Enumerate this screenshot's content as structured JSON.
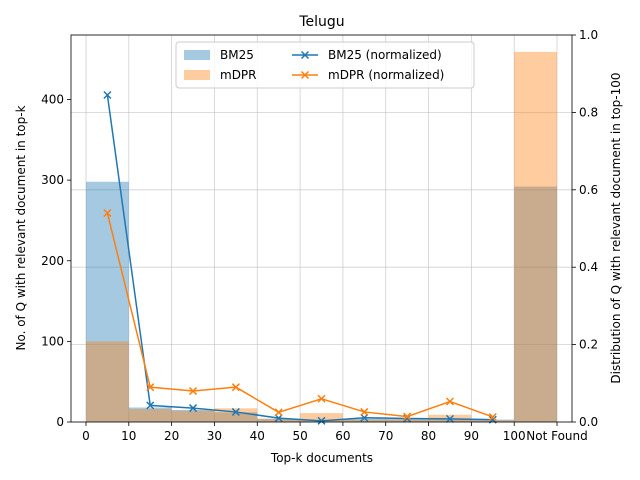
{
  "chart_data": {
    "type": "bar",
    "title": "Telugu",
    "xlabel": "Top-k documents",
    "ylabel": "No. of Q with relevant document in top-k",
    "y2label": "Distribution of Q with relevant document in top-100",
    "bin_edges": [
      0,
      10,
      20,
      30,
      40,
      50,
      60,
      70,
      80,
      90,
      100,
      110
    ],
    "xticks": [
      0,
      10,
      20,
      30,
      40,
      50,
      60,
      70,
      80,
      90,
      100,
      110
    ],
    "xtick_labels": [
      "0",
      "10",
      "20",
      "30",
      "40",
      "50",
      "60",
      "70",
      "80",
      "90",
      "100",
      "Not Found"
    ],
    "xlim": [
      -3.5,
      113.5
    ],
    "ylim": [
      0,
      480
    ],
    "yticks": [
      0,
      100,
      200,
      300,
      400
    ],
    "y2lim": [
      0,
      1.0
    ],
    "y2ticks": [
      0.0,
      0.2,
      0.4,
      0.6,
      0.8,
      1.0
    ],
    "grid": true,
    "legend_position": "top-center",
    "legend_columns": 2,
    "bar_series": [
      {
        "name": "BM25",
        "color": "#1f77b4",
        "opacity": 0.4,
        "values": [
          298,
          18,
          15,
          12,
          4,
          2,
          4,
          4,
          4,
          3,
          292
        ]
      },
      {
        "name": "mDPR",
        "color": "#ff7f0e",
        "opacity": 0.4,
        "values": [
          100,
          16,
          14,
          17,
          4,
          11,
          3,
          3,
          9,
          2,
          459
        ]
      }
    ],
    "line_series": [
      {
        "name": "BM25 (normalized)",
        "color": "#1f77b4",
        "marker": "x",
        "x": [
          5,
          15,
          25,
          35,
          45,
          55,
          65,
          75,
          85,
          95
        ],
        "values": [
          0.845,
          0.043,
          0.036,
          0.026,
          0.01,
          0.003,
          0.011,
          0.009,
          0.008,
          0.006
        ]
      },
      {
        "name": "mDPR (normalized)",
        "color": "#ff7f0e",
        "marker": "x",
        "x": [
          5,
          15,
          25,
          35,
          45,
          55,
          65,
          75,
          85,
          95
        ],
        "values": [
          0.54,
          0.09,
          0.08,
          0.09,
          0.025,
          0.06,
          0.026,
          0.014,
          0.053,
          0.013
        ]
      }
    ]
  }
}
